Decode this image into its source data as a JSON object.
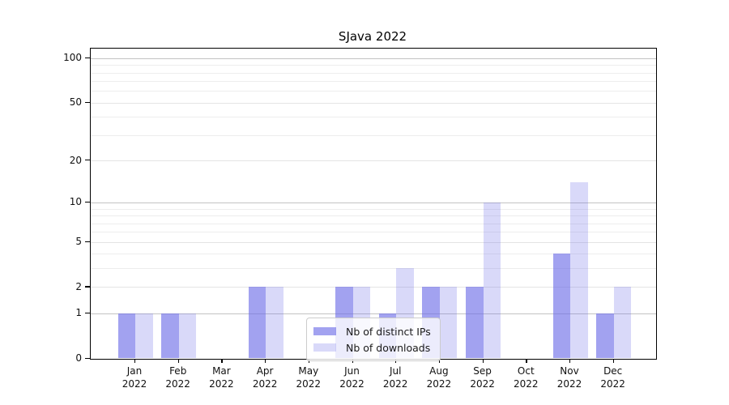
{
  "chart_data": {
    "type": "bar",
    "title": "SJava 2022",
    "categories": [
      "Jan 2022",
      "Feb 2022",
      "Mar 2022",
      "Apr 2022",
      "May 2022",
      "Jun 2022",
      "Jul 2022",
      "Aug 2022",
      "Sep 2022",
      "Oct 2022",
      "Nov 2022",
      "Dec 2022"
    ],
    "months": [
      {
        "label": "Jan",
        "sublabel": "2022"
      },
      {
        "label": "Feb",
        "sublabel": "2022"
      },
      {
        "label": "Mar",
        "sublabel": "2022"
      },
      {
        "label": "Apr",
        "sublabel": "2022"
      },
      {
        "label": "May",
        "sublabel": "2022"
      },
      {
        "label": "Jun",
        "sublabel": "2022"
      },
      {
        "label": "Jul",
        "sublabel": "2022"
      },
      {
        "label": "Aug",
        "sublabel": "2022"
      },
      {
        "label": "Sep",
        "sublabel": "2022"
      },
      {
        "label": "Oct",
        "sublabel": "2022"
      },
      {
        "label": "Nov",
        "sublabel": "2022"
      },
      {
        "label": "Dec",
        "sublabel": "2022"
      }
    ],
    "series": [
      {
        "name": "Nb of distinct IPs",
        "color": "rgba(105,105,230,0.62)",
        "values": [
          1,
          1,
          0,
          2,
          0,
          2,
          1,
          2,
          2,
          0,
          4,
          1
        ]
      },
      {
        "name": "Nb of downloads",
        "color": "rgba(105,105,230,0.25)",
        "values": [
          1,
          1,
          0,
          2,
          0,
          2,
          3,
          2,
          10,
          0,
          14,
          2
        ]
      }
    ],
    "yaxis": {
      "scale": "symlog",
      "range": [
        0,
        100
      ],
      "ticks": [
        0,
        1,
        2,
        5,
        10,
        20,
        50,
        100
      ],
      "mid_gridlines": [
        2,
        5,
        20,
        50
      ],
      "emphasized_gridlines": [
        1,
        10,
        100
      ],
      "minor_gridlines": [
        3,
        4,
        6,
        7,
        8,
        9,
        30,
        40,
        60,
        70,
        80,
        90
      ]
    },
    "legend": {
      "position": "inside-bottom-center"
    }
  }
}
